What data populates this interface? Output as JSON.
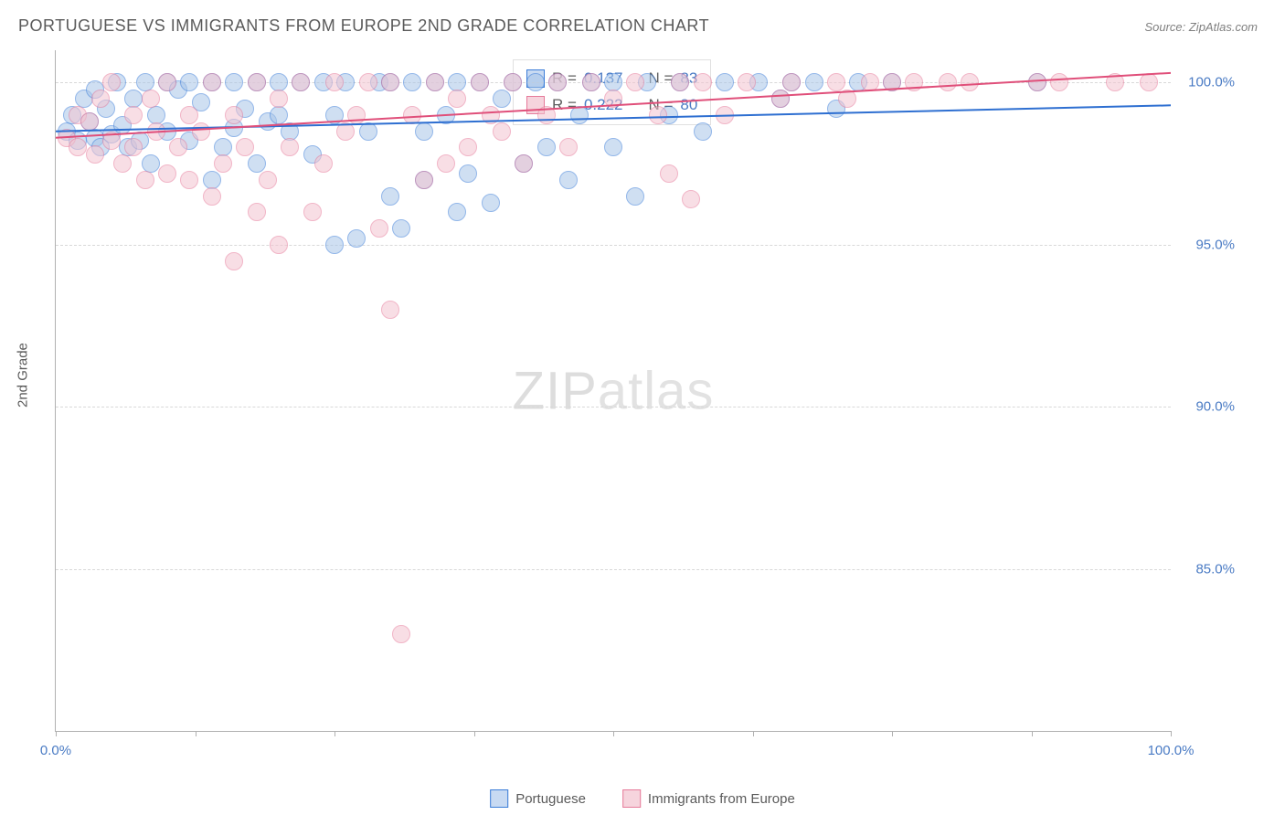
{
  "title": "PORTUGUESE VS IMMIGRANTS FROM EUROPE 2ND GRADE CORRELATION CHART",
  "source": "Source: ZipAtlas.com",
  "y_axis_label": "2nd Grade",
  "watermark_a": "ZIP",
  "watermark_b": "atlas",
  "chart": {
    "type": "scatter",
    "xlim": [
      0,
      100
    ],
    "ylim": [
      80,
      101
    ],
    "ytick_values": [
      85.0,
      90.0,
      95.0,
      100.0
    ],
    "ytick_labels": [
      "85.0%",
      "90.0%",
      "95.0%",
      "100.0%"
    ],
    "xtick_values": [
      0,
      50,
      100
    ],
    "xtick_labels": [
      "0.0%",
      "",
      "100.0%"
    ],
    "xtick_marks": [
      0,
      12.5,
      25,
      37.5,
      50,
      62.5,
      75,
      87.5,
      100
    ],
    "grid_color": "#d8d8d8",
    "background_color": "#ffffff",
    "series": [
      {
        "name": "Portuguese",
        "color_fill": "#a8c5e8",
        "color_stroke": "#3b7dd8",
        "R": "0.137",
        "N": "83",
        "trend": {
          "x1": 0,
          "y1": 98.5,
          "x2": 100,
          "y2": 99.3,
          "color": "#2e6fd1",
          "width": 2
        },
        "points": [
          [
            1,
            98.5
          ],
          [
            1.5,
            99
          ],
          [
            2,
            98.2
          ],
          [
            2.5,
            99.5
          ],
          [
            3,
            98.8
          ],
          [
            3.5,
            98.3
          ],
          [
            3.5,
            99.8
          ],
          [
            4,
            98.0
          ],
          [
            4.5,
            99.2
          ],
          [
            5,
            98.4
          ],
          [
            5.5,
            100
          ],
          [
            6,
            98.7
          ],
          [
            6.5,
            98.0
          ],
          [
            7,
            99.5
          ],
          [
            7.5,
            98.2
          ],
          [
            8,
            100
          ],
          [
            8.5,
            97.5
          ],
          [
            9,
            99.0
          ],
          [
            10,
            100
          ],
          [
            10,
            98.5
          ],
          [
            11,
            99.8
          ],
          [
            12,
            100
          ],
          [
            12,
            98.2
          ],
          [
            13,
            99.4
          ],
          [
            14,
            100
          ],
          [
            14,
            97.0
          ],
          [
            15,
            98.0
          ],
          [
            16,
            100
          ],
          [
            16,
            98.6
          ],
          [
            17,
            99.2
          ],
          [
            18,
            100
          ],
          [
            18,
            97.5
          ],
          [
            19,
            98.8
          ],
          [
            20,
            100
          ],
          [
            20,
            99.0
          ],
          [
            21,
            98.5
          ],
          [
            22,
            100
          ],
          [
            23,
            97.8
          ],
          [
            24,
            100
          ],
          [
            25,
            95.0
          ],
          [
            25,
            99.0
          ],
          [
            26,
            100
          ],
          [
            27,
            95.2
          ],
          [
            28,
            98.5
          ],
          [
            29,
            100
          ],
          [
            30,
            96.5
          ],
          [
            30,
            100
          ],
          [
            31,
            95.5
          ],
          [
            32,
            100
          ],
          [
            33,
            97.0
          ],
          [
            33,
            98.5
          ],
          [
            34,
            100
          ],
          [
            35,
            99.0
          ],
          [
            36,
            96.0
          ],
          [
            36,
            100
          ],
          [
            37,
            97.2
          ],
          [
            38,
            100
          ],
          [
            39,
            96.3
          ],
          [
            40,
            99.5
          ],
          [
            41,
            100
          ],
          [
            42,
            97.5
          ],
          [
            43,
            100
          ],
          [
            44,
            98.0
          ],
          [
            45,
            100
          ],
          [
            46,
            97.0
          ],
          [
            47,
            99.0
          ],
          [
            48,
            100
          ],
          [
            50,
            98.0
          ],
          [
            50,
            100
          ],
          [
            52,
            96.5
          ],
          [
            53,
            100
          ],
          [
            55,
            99.0
          ],
          [
            56,
            100
          ],
          [
            58,
            98.5
          ],
          [
            60,
            100
          ],
          [
            63,
            100
          ],
          [
            65,
            99.5
          ],
          [
            66,
            100
          ],
          [
            68,
            100
          ],
          [
            70,
            99.2
          ],
          [
            72,
            100
          ],
          [
            75,
            100
          ],
          [
            88,
            100
          ]
        ]
      },
      {
        "name": "Immigrants from Europe",
        "color_fill": "#f4c4d0",
        "color_stroke": "#e67a9a",
        "R": "0.222",
        "N": "80",
        "trend": {
          "x1": 0,
          "y1": 98.3,
          "x2": 100,
          "y2": 100.3,
          "color": "#e04f7a",
          "width": 2
        },
        "points": [
          [
            1,
            98.3
          ],
          [
            2,
            99.0
          ],
          [
            2,
            98.0
          ],
          [
            3,
            98.8
          ],
          [
            3.5,
            97.8
          ],
          [
            4,
            99.5
          ],
          [
            5,
            98.2
          ],
          [
            5,
            100
          ],
          [
            6,
            97.5
          ],
          [
            7,
            99.0
          ],
          [
            7,
            98.0
          ],
          [
            8,
            97.0
          ],
          [
            8.5,
            99.5
          ],
          [
            9,
            98.5
          ],
          [
            10,
            97.2
          ],
          [
            10,
            100
          ],
          [
            11,
            98.0
          ],
          [
            12,
            97.0
          ],
          [
            12,
            99.0
          ],
          [
            13,
            98.5
          ],
          [
            14,
            96.5
          ],
          [
            14,
            100
          ],
          [
            15,
            97.5
          ],
          [
            16,
            99.0
          ],
          [
            16,
            94.5
          ],
          [
            17,
            98.0
          ],
          [
            18,
            96.0
          ],
          [
            18,
            100
          ],
          [
            19,
            97.0
          ],
          [
            20,
            95.0
          ],
          [
            20,
            99.5
          ],
          [
            21,
            98.0
          ],
          [
            22,
            100
          ],
          [
            23,
            96.0
          ],
          [
            24,
            97.5
          ],
          [
            25,
            100
          ],
          [
            26,
            98.5
          ],
          [
            27,
            99.0
          ],
          [
            28,
            100
          ],
          [
            29,
            95.5
          ],
          [
            30,
            93.0
          ],
          [
            30,
            100
          ],
          [
            31,
            83.0
          ],
          [
            32,
            99.0
          ],
          [
            33,
            97.0
          ],
          [
            34,
            100
          ],
          [
            35,
            97.5
          ],
          [
            36,
            99.5
          ],
          [
            37,
            98.0
          ],
          [
            38,
            100
          ],
          [
            39,
            99.0
          ],
          [
            40,
            98.5
          ],
          [
            41,
            100
          ],
          [
            42,
            97.5
          ],
          [
            44,
            99.0
          ],
          [
            45,
            100
          ],
          [
            46,
            98.0
          ],
          [
            48,
            100
          ],
          [
            50,
            99.5
          ],
          [
            52,
            100
          ],
          [
            54,
            99.0
          ],
          [
            55,
            97.2
          ],
          [
            56,
            100
          ],
          [
            57,
            96.4
          ],
          [
            58,
            100
          ],
          [
            60,
            99.0
          ],
          [
            62,
            100
          ],
          [
            65,
            99.5
          ],
          [
            66,
            100
          ],
          [
            70,
            100
          ],
          [
            71,
            99.5
          ],
          [
            73,
            100
          ],
          [
            75,
            100
          ],
          [
            77,
            100
          ],
          [
            80,
            100
          ],
          [
            82,
            100
          ],
          [
            88,
            100
          ],
          [
            90,
            100
          ],
          [
            95,
            100
          ],
          [
            98,
            100
          ]
        ]
      }
    ]
  },
  "info_box": {
    "rows": [
      {
        "swatch": "blue",
        "R_label": "R =",
        "R": "0.137",
        "N_label": "N =",
        "N": "83"
      },
      {
        "swatch": "pink",
        "R_label": "R =",
        "R": "0.222",
        "N_label": "N =",
        "N": "80"
      }
    ]
  },
  "legend": {
    "items": [
      {
        "swatch": "blue",
        "label": "Portuguese"
      },
      {
        "swatch": "pink",
        "label": "Immigrants from Europe"
      }
    ]
  }
}
